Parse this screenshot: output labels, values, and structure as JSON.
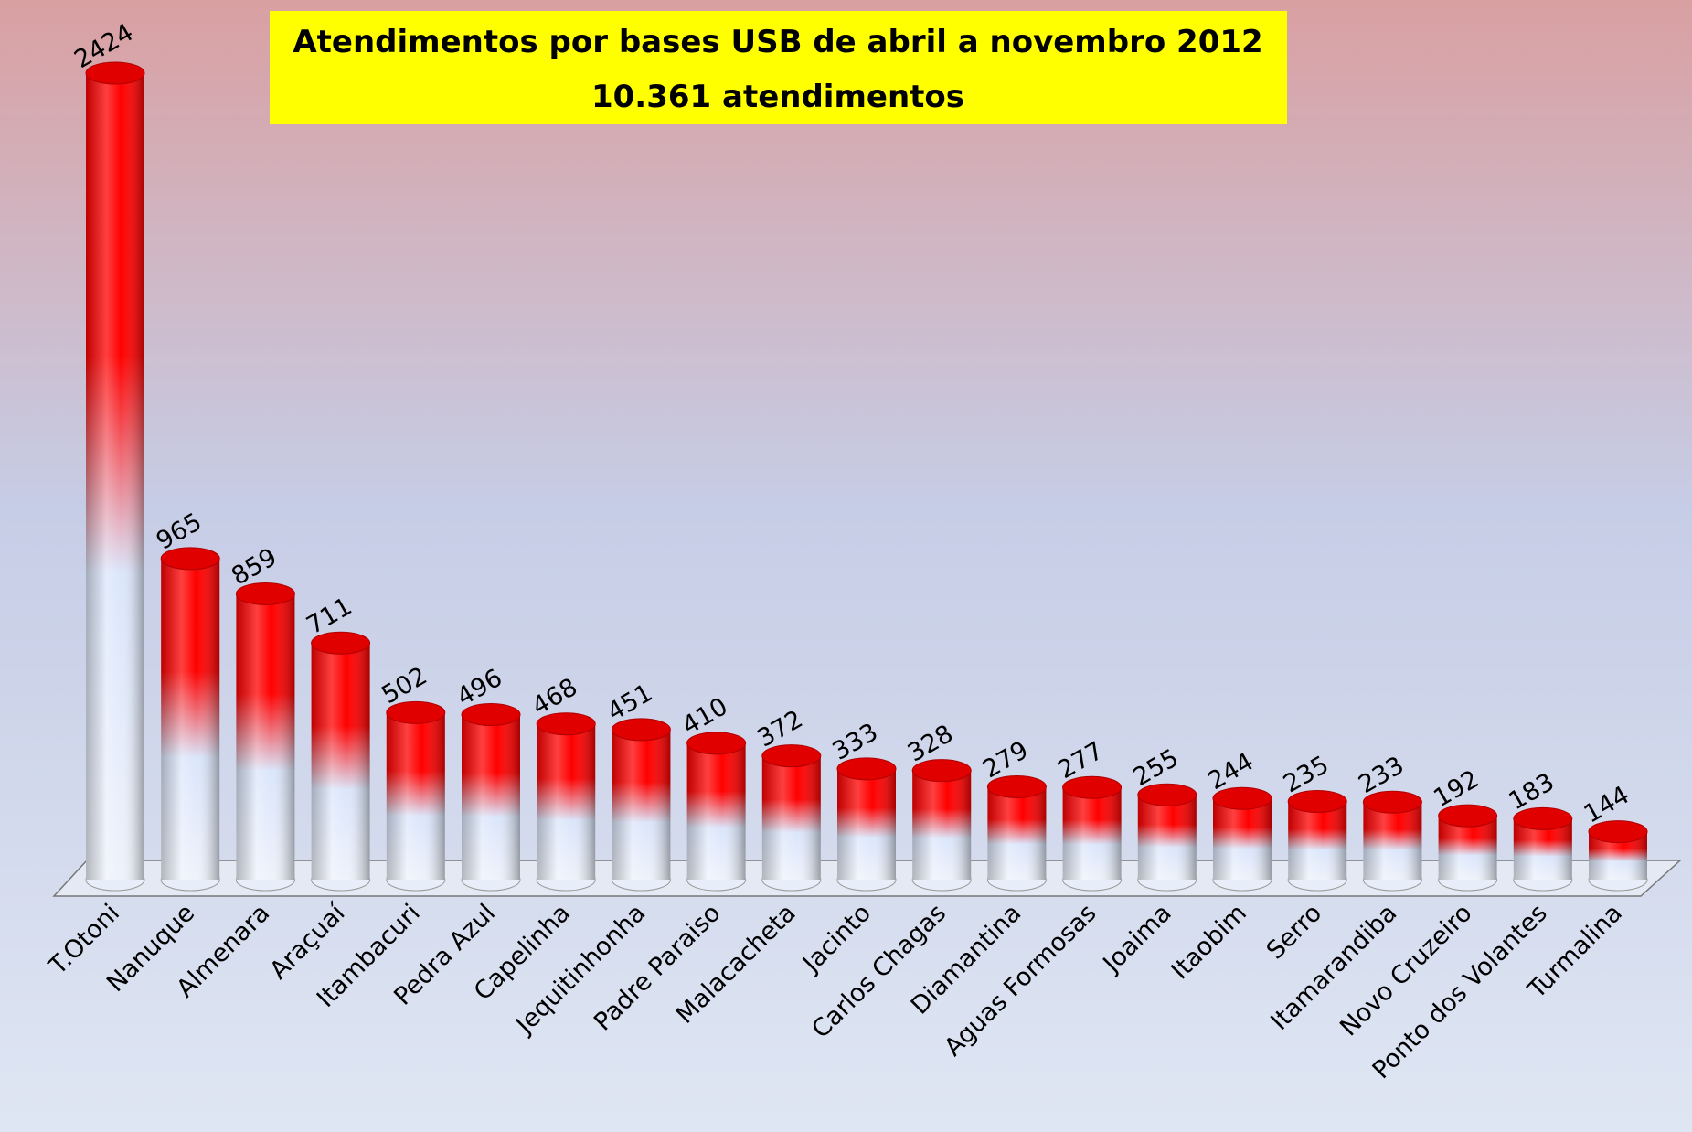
{
  "chart_data": {
    "type": "bar",
    "title": "Atendimentos por bases USB de abril a novembro 2012",
    "subtitle": "10.361  atendimentos",
    "categories": [
      "T.Otoni",
      "Nanuque",
      "Almenara",
      "Araçuaí",
      "Itambacuri",
      "Pedra Azul",
      "Capelinha",
      "Jequitinhonha",
      "Padre Paraiso",
      "Malacacheta",
      "Jacinto",
      "Carlos Chagas",
      "Diamantina",
      "Aguas Formosas",
      "Joaima",
      "Itaobim",
      "Serro",
      "Itamarandiba",
      "Novo Cruzeiro",
      "Ponto dos Volantes",
      "Turmalina"
    ],
    "values": [
      2424,
      965,
      859,
      711,
      502,
      496,
      468,
      451,
      410,
      372,
      333,
      328,
      279,
      277,
      255,
      244,
      235,
      233,
      192,
      183,
      144
    ],
    "color": "#ff0000"
  }
}
